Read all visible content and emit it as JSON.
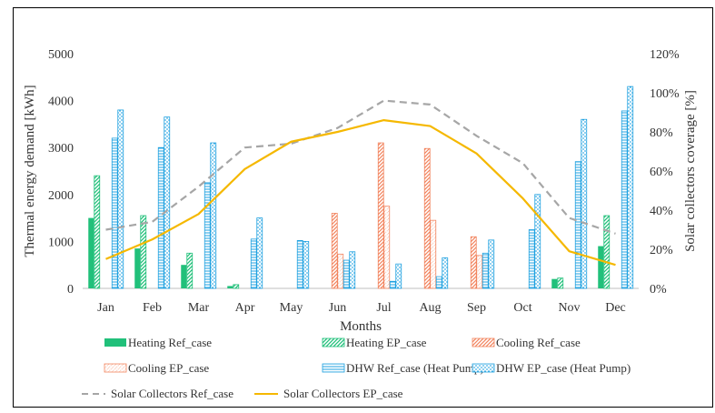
{
  "chart_data": {
    "type": "bar",
    "xlabel": "Months",
    "ylabel": "Thermal energy demand [kWh]",
    "ylabel_right": "Solar collectors coverage [%]",
    "ylim": [
      0,
      5000
    ],
    "yticks": [
      0,
      1000,
      2000,
      3000,
      4000,
      5000
    ],
    "ylim_right": [
      0,
      120
    ],
    "yticks_right": [
      "0%",
      "20%",
      "40%",
      "60%",
      "80%",
      "100%",
      "120%"
    ],
    "grid": false,
    "legend_position": "bottom",
    "categories": [
      "Jan",
      "Feb",
      "Mar",
      "Apr",
      "May",
      "Jun",
      "Jul",
      "Aug",
      "Sep",
      "Oct",
      "Nov",
      "Dec"
    ],
    "bar_series": [
      {
        "name": "Heating Ref_case",
        "pattern": "solid",
        "color": "#21c07a",
        "values": [
          1500,
          850,
          500,
          50,
          0,
          0,
          0,
          0,
          0,
          0,
          200,
          900
        ]
      },
      {
        "name": "Heating EP_case",
        "pattern": "diag",
        "color": "#21c07a",
        "values": [
          2400,
          1550,
          750,
          80,
          0,
          0,
          0,
          0,
          0,
          0,
          220,
          1550
        ]
      },
      {
        "name": "Cooling Ref_case",
        "pattern": "diag",
        "color": "#f2845e",
        "values": [
          0,
          0,
          0,
          0,
          0,
          1600,
          3100,
          2980,
          1100,
          0,
          0,
          0
        ]
      },
      {
        "name": "Cooling EP_case",
        "pattern": "diagdot",
        "color": "#f2845e",
        "values": [
          0,
          0,
          0,
          0,
          0,
          730,
          1750,
          1450,
          700,
          0,
          0,
          0
        ]
      },
      {
        "name": "DHW Ref_case (Heat Pump)",
        "pattern": "hlines",
        "color": "#1fa1e0",
        "values": [
          3200,
          3000,
          2250,
          1050,
          1020,
          600,
          150,
          250,
          750,
          1250,
          2700,
          3780
        ]
      },
      {
        "name": "DHW EP_case (Heat Pump)",
        "pattern": "hdash",
        "color": "#1fa1e0",
        "values": [
          3800,
          3650,
          3100,
          1500,
          1000,
          780,
          520,
          650,
          1030,
          2000,
          3600,
          4300
        ]
      }
    ],
    "line_series": [
      {
        "name": "Solar Collectors Ref_case",
        "style": "dashed",
        "color": "#a6a6a6",
        "axis": "right",
        "values": [
          30,
          34,
          52,
          72,
          74,
          82,
          96,
          94,
          78,
          64,
          36,
          28
        ]
      },
      {
        "name": "Solar Collectors EP_case",
        "style": "solid",
        "color": "#f5b800",
        "axis": "right",
        "values": [
          15,
          25,
          38,
          61,
          75,
          80,
          86,
          83,
          69,
          46,
          19,
          12
        ]
      }
    ]
  }
}
